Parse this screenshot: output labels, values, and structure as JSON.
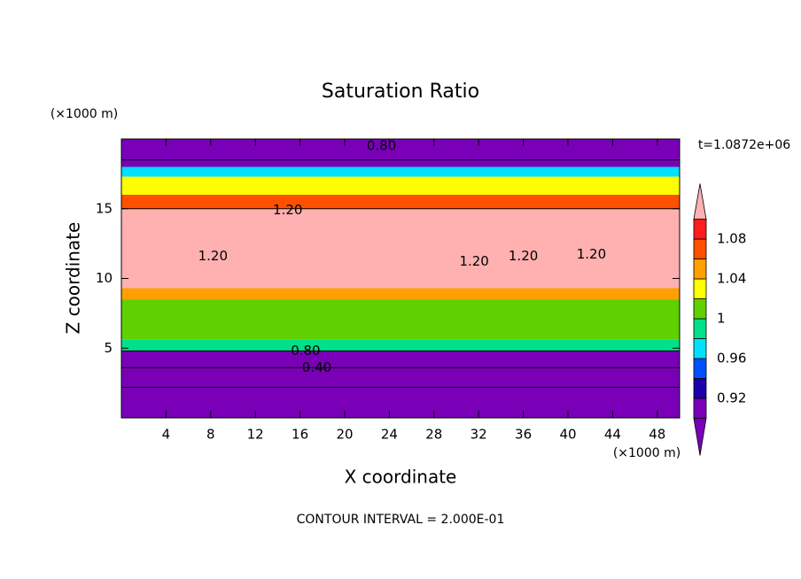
{
  "chart_data": {
    "type": "contour",
    "title": "Saturation Ratio",
    "x_label": "X coordinate",
    "y_label": "Z coordinate",
    "x_unit": "(×1000 m)",
    "y_unit": "(×1000 m)",
    "time_label": "t=1.0872e+06",
    "footer": "CONTOUR INTERVAL = 2.000E-01",
    "xlim": [
      0,
      50
    ],
    "ylim": [
      0,
      20
    ],
    "xticks": [
      4,
      8,
      12,
      16,
      20,
      24,
      28,
      32,
      36,
      40,
      44,
      48
    ],
    "yticks": [
      5,
      10,
      15
    ],
    "levels": [
      0.9,
      0.92,
      0.94,
      0.96,
      0.98,
      1.0,
      1.02,
      1.04,
      1.06,
      1.08,
      1.1
    ],
    "colors": [
      "#7a00b8",
      "#7a00b8",
      "#1c00a8",
      "#0050ff",
      "#00e0ff",
      "#00e08a",
      "#60d000",
      "#ffff00",
      "#ffa000",
      "#ff5000",
      "#ff1c1c",
      "#ffb0b0"
    ],
    "colorbar_ticks": [
      0.92,
      0.96,
      1,
      1.04,
      1.08
    ],
    "bands": [
      {
        "from": 0,
        "to": 4.8,
        "value": 0.85
      },
      {
        "from": 4.8,
        "to": 5.6,
        "value": 0.99
      },
      {
        "from": 5.6,
        "to": 8.5,
        "value": 1.01
      },
      {
        "from": 8.5,
        "to": 9.3,
        "value": 1.05
      },
      {
        "from": 9.3,
        "to": 15,
        "value": 1.15
      },
      {
        "from": 15,
        "to": 16,
        "value": 1.07
      },
      {
        "from": 16,
        "to": 17.3,
        "value": 1.03
      },
      {
        "from": 17.3,
        "to": 18,
        "value": 0.97
      },
      {
        "from": 18,
        "to": 20,
        "value": 0.85
      }
    ],
    "contour_z": [
      2.2,
      3.6,
      4.8,
      15.0,
      18.5
    ],
    "contour_labels": [
      {
        "text": "0.80",
        "x": 23.3,
        "z": 19.5
      },
      {
        "text": "1.20",
        "x": 14.9,
        "z": 14.9
      },
      {
        "text": "1.20",
        "x": 8.2,
        "z": 11.6
      },
      {
        "text": "1.20",
        "x": 31.6,
        "z": 11.2
      },
      {
        "text": "1.20",
        "x": 36.0,
        "z": 11.6
      },
      {
        "text": "1.20",
        "x": 42.1,
        "z": 11.7
      },
      {
        "text": "0.80",
        "x": 16.5,
        "z": 4.8
      },
      {
        "text": "0.40",
        "x": 17.5,
        "z": 3.6
      }
    ]
  }
}
